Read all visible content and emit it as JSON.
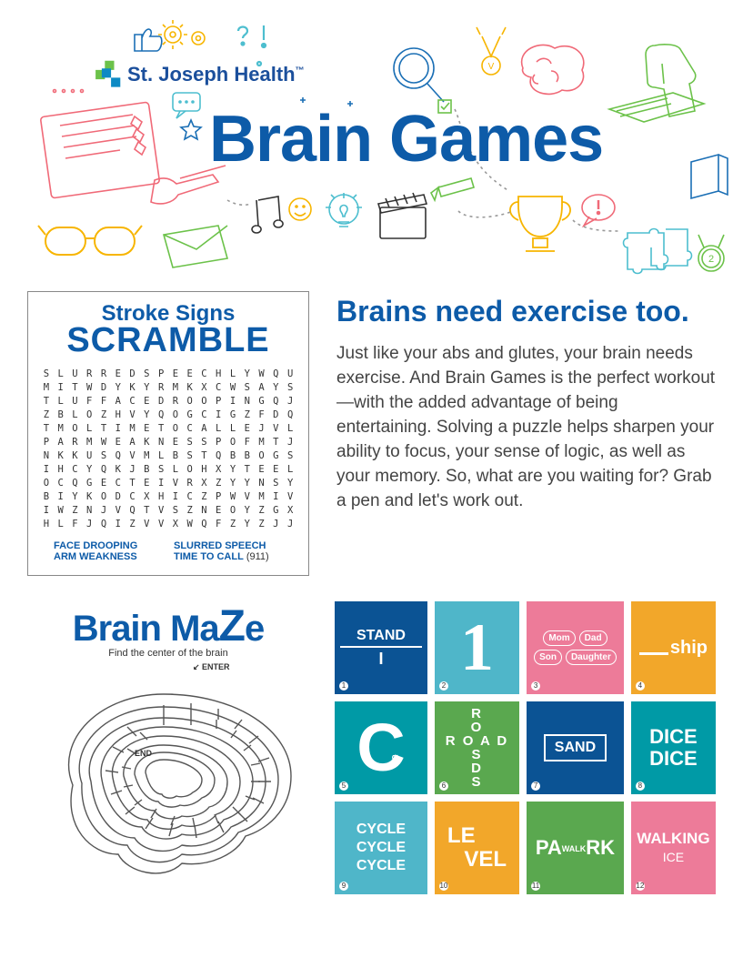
{
  "colors": {
    "brand_blue": "#0d5ba8",
    "text_body": "#444444",
    "text_dark": "#333333",
    "doodle_green": "#6cc24a",
    "doodle_red": "#f06a78",
    "doodle_yellow": "#f7b500",
    "doodle_cyan": "#4dbecf",
    "doodle_blue": "#1b6fb5",
    "tile_blue_dark": "#0b5394",
    "tile_cyan": "#4fb6c9",
    "tile_pink": "#ed7b99",
    "tile_yellow": "#f2a72a",
    "tile_teal": "#009aa6",
    "tile_green": "#5aa84f"
  },
  "logo": {
    "text": "St. Joseph Health",
    "tm": "™"
  },
  "title": "Brain Games",
  "scramble": {
    "title_top": "Stroke Signs",
    "title_main": "SCRAMBLE",
    "rows": [
      "SLURREDSPEECHLYWQU",
      "MITWDYKYRMKXCWSAYS",
      "TLUFFACEDROOPINGQJ",
      "ZBLOZHVYQOGCIGZFDQ",
      "TMOLTIMETOCALLEJVL",
      "PARMWEAKNESSPOFMTJ",
      "NKKUSQVMLBSTQBBOGS",
      "IHCYQKJBSLOHXYTEEL",
      "OCQGECTEIVRXZYYNSY",
      "BIYKODCXHICZPWVMIV",
      "IWZNJVQTVSZNEOYZGX",
      "HLFJQIZVVXWQFZYZJJ"
    ],
    "words": {
      "a1": "FACE DROOPING",
      "a2": "SLURRED SPEECH",
      "b1": "ARM WEAKNESS",
      "b2_label": "TIME TO CALL",
      "b2_plain": " (911)"
    }
  },
  "blurb": {
    "heading": "Brains need exercise too.",
    "body": "Just like your abs and glutes, your brain needs exercise. And Brain Games is the perfect workout—with the added advantage of being entertaining. Solving a puzzle helps sharpen your ability to focus, your sense of logic, as well as your memory. So, what are you waiting for? Grab a pen and let's work out."
  },
  "maze": {
    "title_pre": "Brain Ma",
    "title_big": "Z",
    "title_post": "e",
    "subtitle": "Find the center of the brain",
    "enter": "ENTER",
    "end": "END"
  },
  "rebus": [
    {
      "n": "1",
      "bg": "tile_blue_dark",
      "kind": "stand",
      "top": "STAND",
      "bot": "I"
    },
    {
      "n": "2",
      "bg": "tile_cyan",
      "kind": "big1",
      "text": "1"
    },
    {
      "n": "3",
      "bg": "tile_pink",
      "kind": "bows",
      "labels": [
        "Mom",
        "Dad",
        "Son",
        "Daughter"
      ]
    },
    {
      "n": "4",
      "bg": "tile_yellow",
      "kind": "ship",
      "text": "ship"
    },
    {
      "n": "5",
      "bg": "tile_teal",
      "kind": "bigC",
      "text": "C",
      "fish": "⋖"
    },
    {
      "n": "6",
      "bg": "tile_green",
      "kind": "cross",
      "h": "ROADS",
      "v": "ROADS"
    },
    {
      "n": "7",
      "bg": "tile_blue_dark",
      "kind": "box",
      "text": "SAND"
    },
    {
      "n": "8",
      "bg": "tile_teal",
      "kind": "dice",
      "l1": "DICE",
      "l2": "DICE"
    },
    {
      "n": "9",
      "bg": "tile_cyan",
      "kind": "cycle",
      "text": "CYCLE"
    },
    {
      "n": "10",
      "bg": "tile_yellow",
      "kind": "level",
      "le": "LE",
      "vel": "VEL"
    },
    {
      "n": "11",
      "bg": "tile_green",
      "kind": "park",
      "pa": "PA",
      "mid": "WALK",
      "rk": "RK"
    },
    {
      "n": "12",
      "bg": "tile_pink",
      "kind": "walk",
      "l1": "WALKING",
      "l2": "ICE"
    }
  ]
}
